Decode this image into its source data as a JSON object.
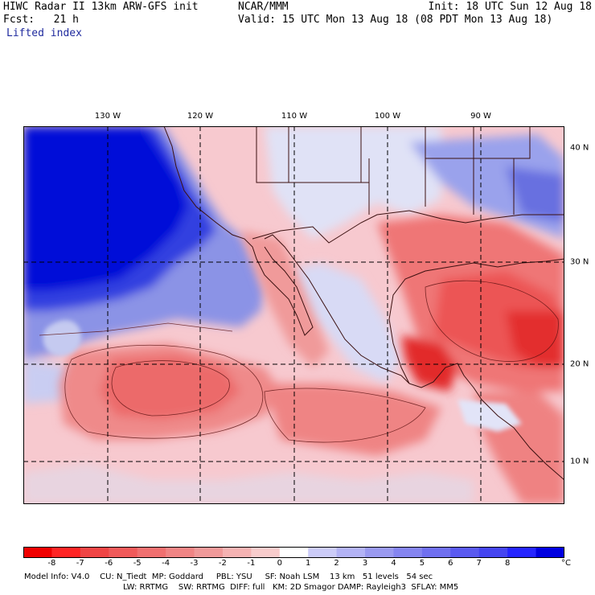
{
  "header": {
    "line1": "HIWC Radar II 13km ARW-GFS init",
    "line2": "Fcst:   21 h",
    "field": "Lifted index",
    "center": "NCAR/MMM",
    "init": "Init: 18 UTC Sun 12 Aug 18",
    "valid": "Valid: 15 UTC Mon 13 Aug 18 (08 PDT Mon 13 Aug 18)"
  },
  "map": {
    "lon_labels": [
      "130 W",
      "120 W",
      "110 W",
      "100 W",
      "90 W"
    ],
    "lat_labels": [
      "40 N",
      "30 N",
      "20 N",
      "10 N"
    ],
    "colors": {
      "ocean_stable": "#0010d8",
      "stable_mid": "#7a86e6",
      "neutral": "#f4f0f6",
      "unstable_light": "#f7c5c5",
      "unstable_mid": "#ef7c7c",
      "unstable_strong": "#e33636"
    }
  },
  "legend": {
    "labels": [
      "-8",
      "-7",
      "-6",
      "-5",
      "-4",
      "-3",
      "-2",
      "-1",
      "0",
      "1",
      "2",
      "3",
      "4",
      "5",
      "6",
      "7",
      "8"
    ],
    "unit": "°C",
    "colors": [
      "#f00000",
      "#ff2525",
      "#f04545",
      "#f05a5a",
      "#f07070",
      "#f08585",
      "#f09a9a",
      "#f5b3b3",
      "#f8cccc",
      "#ffffff",
      "#ccccf8",
      "#b3b3f5",
      "#9a9af0",
      "#8585f0",
      "#7070f0",
      "#5a5af0",
      "#4545f0",
      "#2525ff",
      "#0000e0"
    ]
  },
  "footer": {
    "line1": "Model Info: V4.0    CU: N_Tiedt  MP: Goddard     PBL: YSU     SF: Noah LSM    13 km   51 levels   54 sec",
    "line2": "LW: RRTMG    SW: RRTMG  DIFF: full   KM: 2D Smagor DAMP: Rayleigh3  SFLAY: MM5"
  }
}
